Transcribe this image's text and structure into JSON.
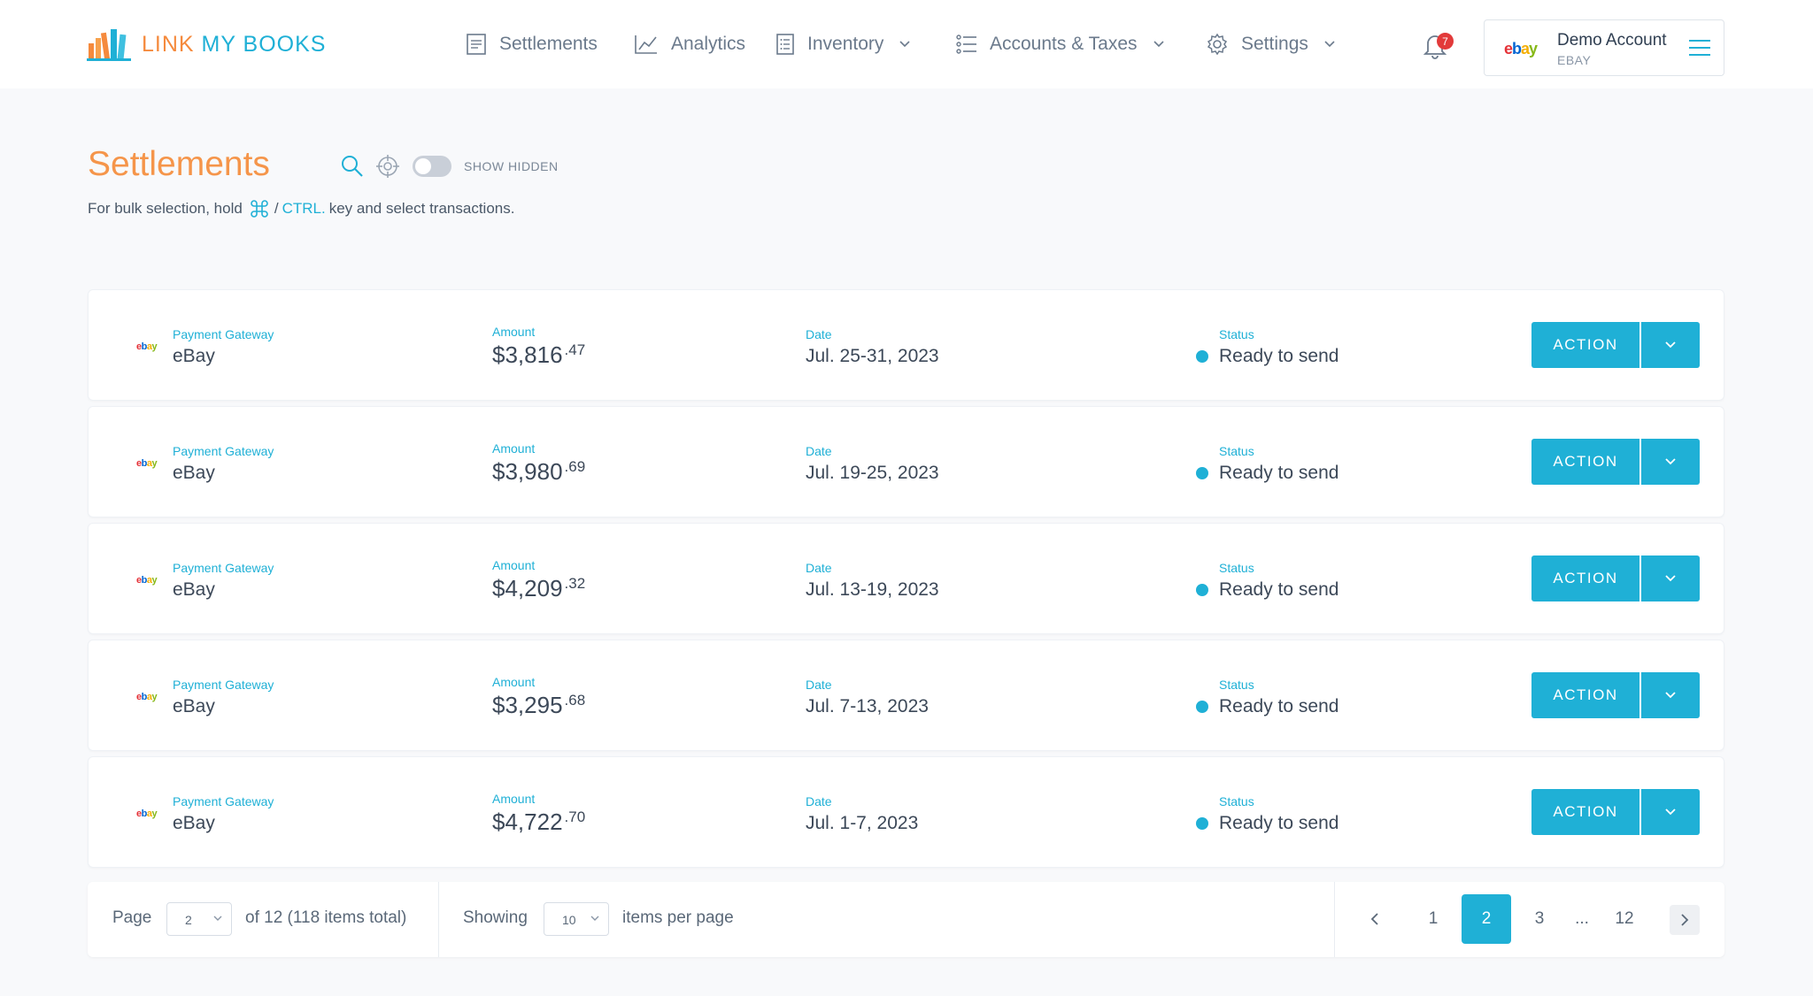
{
  "brand": {
    "name_part1": "LINK ",
    "name_part2": "MY BOOKS"
  },
  "nav": {
    "settlements": "Settlements",
    "analytics": "Analytics",
    "inventory": "Inventory",
    "accounts_taxes": "Accounts & Taxes",
    "settings": "Settings"
  },
  "notifications": {
    "count": "7"
  },
  "account": {
    "logo": "ebay",
    "name": "Demo Account",
    "platform": "EBAY"
  },
  "page": {
    "title": "Settlements",
    "show_hidden": "SHOW HIDDEN",
    "hint_prefix": "For bulk selection, hold",
    "hint_sep": "/",
    "hint_ctrl": "CTRL.",
    "hint_suffix": "key and select transactions."
  },
  "columns": {
    "gateway": "Payment Gateway",
    "amount": "Amount",
    "date": "Date",
    "status": "Status"
  },
  "settlements": [
    {
      "gateway": "eBay",
      "amount_main": "$3,816",
      "amount_cents": ".47",
      "date": "Jul. 25-31, 2023",
      "status": "Ready to send",
      "action": "ACTION"
    },
    {
      "gateway": "eBay",
      "amount_main": "$3,980",
      "amount_cents": ".69",
      "date": "Jul. 19-25, 2023",
      "status": "Ready to send",
      "action": "ACTION"
    },
    {
      "gateway": "eBay",
      "amount_main": "$4,209",
      "amount_cents": ".32",
      "date": "Jul. 13-19, 2023",
      "status": "Ready to send",
      "action": "ACTION"
    },
    {
      "gateway": "eBay",
      "amount_main": "$3,295",
      "amount_cents": ".68",
      "date": "Jul. 7-13, 2023",
      "status": "Ready to send",
      "action": "ACTION"
    },
    {
      "gateway": "eBay",
      "amount_main": "$4,722",
      "amount_cents": ".70",
      "date": "Jul. 1-7, 2023",
      "status": "Ready to send",
      "action": "ACTION"
    }
  ],
  "pagination": {
    "page_label": "Page",
    "page_value": "2",
    "of_text": "of 12 (118 items total)",
    "showing_label": "Showing",
    "per_page_value": "10",
    "per_page_text": "items per page",
    "pages": [
      "1",
      "2",
      "3",
      "...",
      "12"
    ],
    "current": "2"
  },
  "colors": {
    "accent": "#1fb0d6",
    "title": "#f5954a",
    "badge": "#e23a3a"
  }
}
